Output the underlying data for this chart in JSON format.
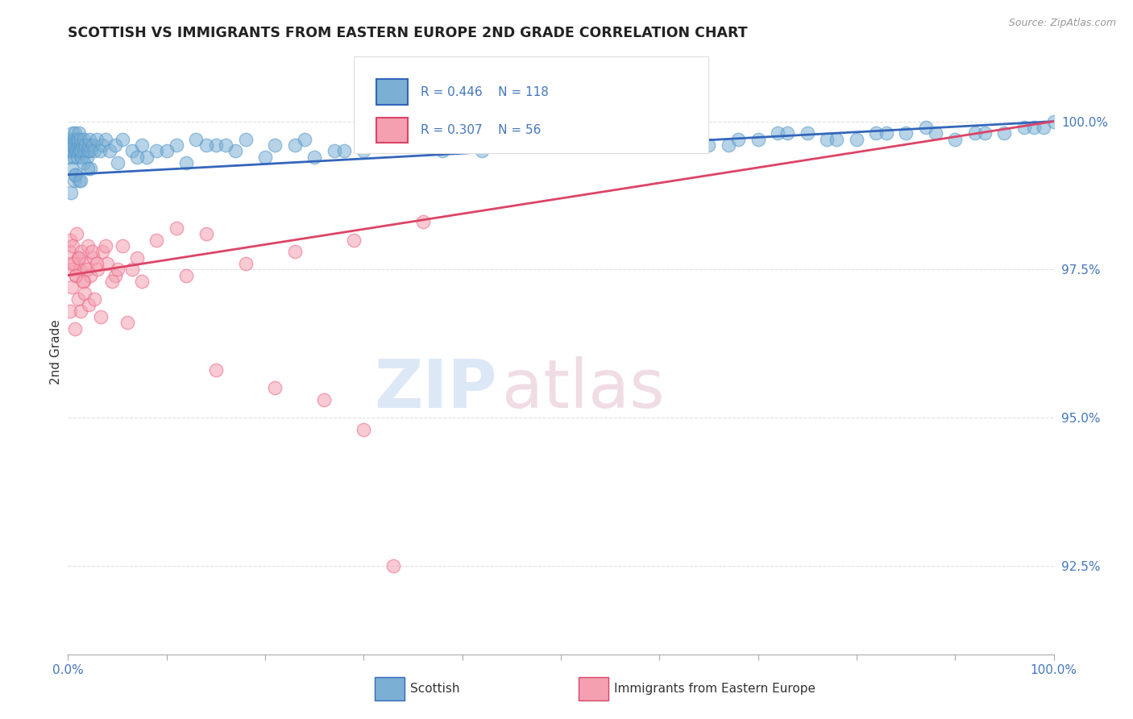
{
  "title": "SCOTTISH VS IMMIGRANTS FROM EASTERN EUROPE 2ND GRADE CORRELATION CHART",
  "source_text": "Source: ZipAtlas.com",
  "ylabel": "2nd Grade",
  "xlim": [
    0.0,
    100.0
  ],
  "ylim": [
    91.0,
    101.2
  ],
  "yticks": [
    92.5,
    95.0,
    97.5,
    100.0
  ],
  "ytick_labels": [
    "92.5%",
    "95.0%",
    "97.5%",
    "100.0%"
  ],
  "blue_color": "#7BAFD4",
  "blue_edge": "#5599CC",
  "pink_color": "#F4A0B0",
  "pink_edge": "#EE6688",
  "blue_line_color": "#3366BB",
  "pink_line_color": "#DD4466",
  "blue_r": "0.446",
  "blue_n": "118",
  "pink_r": "0.307",
  "pink_n": "56",
  "legend_scottish": "Scottish",
  "legend_eastern": "Immigrants from Eastern Europe",
  "background_color": "#ffffff",
  "grid_color": "#cccccc",
  "title_color": "#222222",
  "tick_label_color": "#4477BB",
  "source_color": "#999999",
  "watermark_zip_color": "#dce8f5",
  "watermark_atlas_color": "#f0dce4",
  "blue_scatter_x": [
    0.15,
    0.2,
    0.25,
    0.3,
    0.35,
    0.4,
    0.45,
    0.5,
    0.55,
    0.6,
    0.65,
    0.7,
    0.75,
    0.8,
    0.85,
    0.9,
    0.95,
    1.0,
    1.05,
    1.1,
    1.15,
    1.2,
    1.25,
    1.3,
    1.35,
    1.4,
    1.5,
    1.6,
    1.7,
    1.8,
    1.9,
    2.0,
    2.1,
    2.2,
    2.3,
    2.5,
    2.7,
    2.9,
    3.2,
    3.5,
    3.8,
    4.2,
    4.8,
    5.5,
    6.5,
    7.5,
    9.0,
    11.0,
    13.0,
    15.0,
    18.0,
    21.0,
    24.0,
    27.0,
    31.0,
    35.0,
    39.0,
    43.0,
    47.0,
    52.0,
    57.0,
    62.0,
    67.0,
    72.0,
    77.0,
    82.0,
    87.0,
    92.0,
    97.0,
    100.0,
    8.0,
    10.0,
    12.0,
    14.0,
    17.0,
    20.0,
    23.0,
    28.0,
    33.0,
    38.0,
    44.0,
    50.0,
    55.0,
    60.0,
    65.0,
    70.0,
    75.0,
    80.0,
    85.0,
    90.0,
    95.0,
    98.0,
    30.0,
    45.0,
    25.0,
    16.0,
    42.0,
    68.0,
    78.0,
    88.0,
    93.0,
    99.0,
    5.0,
    7.0,
    48.0,
    53.0,
    63.0,
    73.0,
    83.0,
    58.0,
    0.4,
    0.6,
    0.8,
    1.1,
    1.6,
    2.3,
    0.3,
    0.7,
    1.3,
    2.0
  ],
  "blue_scatter_y": [
    99.6,
    99.5,
    99.4,
    99.7,
    99.5,
    99.6,
    99.8,
    99.5,
    99.6,
    99.7,
    99.4,
    99.8,
    99.5,
    99.6,
    99.7,
    99.5,
    99.4,
    99.6,
    99.7,
    99.5,
    99.8,
    99.5,
    99.6,
    99.7,
    99.4,
    99.5,
    99.6,
    99.7,
    99.5,
    99.6,
    99.4,
    99.5,
    99.6,
    99.7,
    99.5,
    99.6,
    99.5,
    99.7,
    99.5,
    99.6,
    99.7,
    99.5,
    99.6,
    99.7,
    99.5,
    99.6,
    99.5,
    99.6,
    99.7,
    99.6,
    99.7,
    99.6,
    99.7,
    99.5,
    99.7,
    99.6,
    99.8,
    99.7,
    99.6,
    99.8,
    99.7,
    99.8,
    99.6,
    99.8,
    99.7,
    99.8,
    99.9,
    99.8,
    99.9,
    100.0,
    99.4,
    99.5,
    99.3,
    99.6,
    99.5,
    99.4,
    99.6,
    99.5,
    99.6,
    99.5,
    99.6,
    99.7,
    99.6,
    99.7,
    99.6,
    99.7,
    99.8,
    99.7,
    99.8,
    99.7,
    99.8,
    99.9,
    99.5,
    99.6,
    99.4,
    99.6,
    99.5,
    99.7,
    99.7,
    99.8,
    99.8,
    99.9,
    99.3,
    99.4,
    99.6,
    99.7,
    99.7,
    99.8,
    99.8,
    99.7,
    99.2,
    99.0,
    99.1,
    99.0,
    99.3,
    99.2,
    98.8,
    99.1,
    99.0,
    99.2
  ],
  "pink_scatter_x": [
    0.15,
    0.25,
    0.35,
    0.45,
    0.6,
    0.75,
    0.9,
    1.05,
    1.2,
    1.4,
    1.6,
    1.8,
    2.0,
    2.3,
    2.6,
    3.0,
    3.5,
    4.0,
    4.8,
    5.5,
    6.5,
    7.5,
    9.0,
    11.0,
    14.0,
    18.0,
    23.0,
    29.0,
    36.0,
    0.5,
    0.8,
    1.1,
    1.5,
    1.9,
    2.4,
    2.9,
    3.8,
    5.0,
    7.0,
    12.0,
    0.2,
    0.4,
    0.7,
    1.0,
    1.3,
    1.7,
    2.1,
    2.7,
    3.3,
    4.5,
    6.0,
    15.0,
    21.0,
    26.0,
    30.0,
    33.0
  ],
  "pink_scatter_y": [
    97.8,
    98.0,
    97.5,
    97.9,
    97.6,
    97.4,
    98.1,
    97.7,
    97.5,
    97.8,
    97.3,
    97.6,
    97.9,
    97.4,
    97.7,
    97.5,
    97.8,
    97.6,
    97.4,
    97.9,
    97.5,
    97.3,
    98.0,
    98.2,
    98.1,
    97.6,
    97.8,
    98.0,
    98.3,
    97.6,
    97.4,
    97.7,
    97.3,
    97.5,
    97.8,
    97.6,
    97.9,
    97.5,
    97.7,
    97.4,
    96.8,
    97.2,
    96.5,
    97.0,
    96.8,
    97.1,
    96.9,
    97.0,
    96.7,
    97.3,
    96.6,
    95.8,
    95.5,
    95.3,
    94.8,
    92.5
  ]
}
